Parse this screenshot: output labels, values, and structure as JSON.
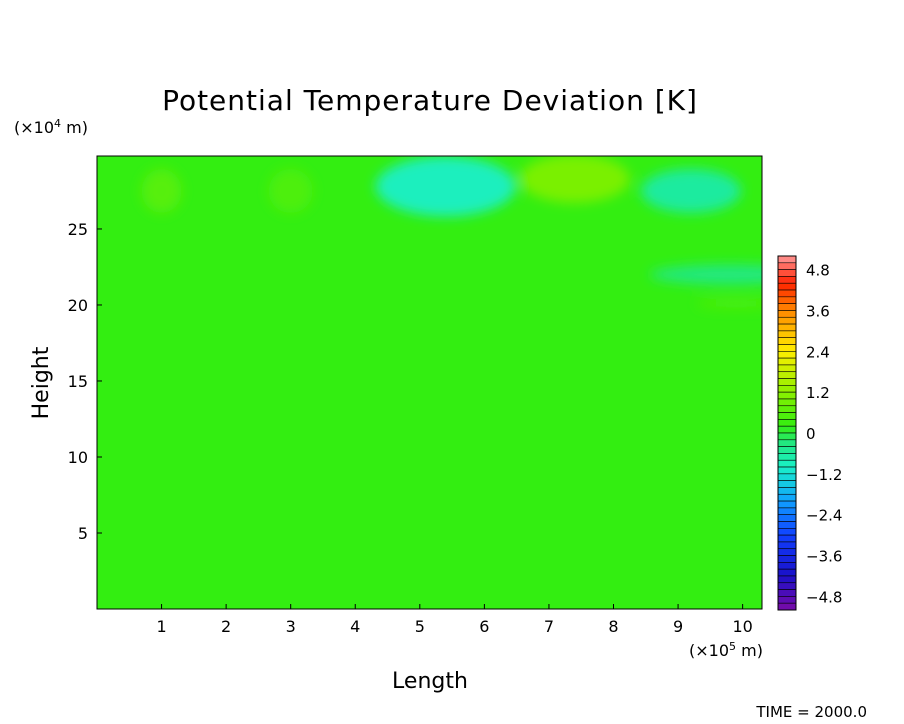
{
  "chart_data": {
    "type": "heatmap",
    "title": "Potential Temperature Deviation [K]",
    "xlabel": "Length",
    "ylabel": "Height",
    "x_unit": "(x10^5 m)",
    "y_unit": "(x10^4 m)",
    "xlim": [
      0,
      10.3
    ],
    "ylim": [
      0,
      29.8
    ],
    "x_ticks": [
      "1",
      "2",
      "3",
      "4",
      "5",
      "6",
      "7",
      "8",
      "9",
      "10"
    ],
    "y_ticks": [
      "5",
      "10",
      "15",
      "20",
      "25"
    ],
    "background_value": 0.2,
    "features": [
      {
        "x": 1.0,
        "y": 27.5,
        "value": 0.6
      },
      {
        "x": 3.0,
        "y": 27.5,
        "value": 0.5
      },
      {
        "x": 5.4,
        "y": 27.8,
        "value": -0.9
      },
      {
        "x": 7.4,
        "y": 28.3,
        "value": 1.0
      },
      {
        "x": 9.2,
        "y": 27.5,
        "value": -0.6
      },
      {
        "x": 9.8,
        "y": 22.0,
        "value": -0.3
      },
      {
        "x": 9.9,
        "y": 20.1,
        "value": 0.5
      }
    ],
    "colorbar": {
      "min": -5.2,
      "max": 5.2,
      "tick_labels": [
        "4.8",
        "3.6",
        "2.4",
        "1.2",
        "0",
        "−1.2",
        "−2.4",
        "−3.6",
        "−4.8"
      ],
      "tick_values": [
        4.8,
        3.6,
        2.4,
        1.2,
        0,
        -1.2,
        -2.4,
        -3.6,
        -4.8
      ]
    },
    "grid": false
  },
  "footer": {
    "time_label": "TIME = 2000.0"
  }
}
